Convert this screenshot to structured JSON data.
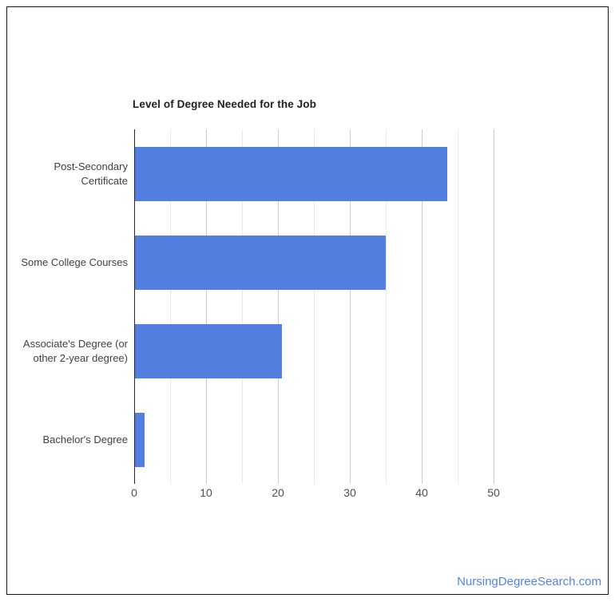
{
  "chart_data": {
    "type": "bar",
    "orientation": "horizontal",
    "title": "Level of Degree Needed for the Job",
    "categories": [
      "Post-Secondary Certificate",
      "Some College Courses",
      "Associate's Degree (or other 2-year degree)",
      "Bachelor's Degree"
    ],
    "values": [
      43.4,
      34.9,
      20.4,
      1.3
    ],
    "xlabel": "",
    "ylabel": "",
    "xlim": [
      0,
      50
    ],
    "x_major_ticks": [
      0,
      10,
      20,
      30,
      40,
      50
    ],
    "x_minor_tick_step": 5,
    "grid": true,
    "legend_position": "none",
    "bar_color": "#5380e0",
    "gridline_color_major": "#cdcdcd",
    "gridline_color_minor": "#e9e9e9",
    "axis_line_color": "#2a2a2a",
    "title_color": "#1f1f1f",
    "label_color": "#3f3f3f",
    "tick_label_color": "#4e4e4e"
  },
  "watermark": {
    "text": "NursingDegreeSearch.com",
    "color": "#5484e2"
  }
}
